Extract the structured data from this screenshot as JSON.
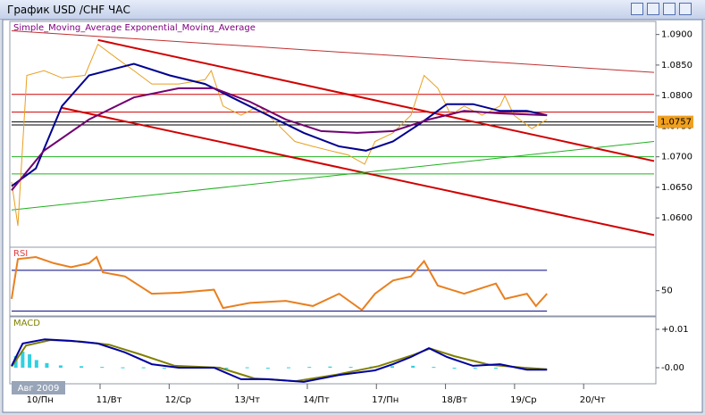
{
  "window": {
    "title": "График USD /CHF  ЧАС"
  },
  "chart_data": [
    {
      "type": "line",
      "title": "Simple_Moving_Average Exponential_Moving_Average",
      "title_color": "#800080",
      "xlim": [
        -0.41,
        8.89
      ],
      "ylim": [
        1.0555,
        1.0917
      ],
      "yticks": [
        {
          "value": 1.09,
          "label": "1.0900"
        },
        {
          "value": 1.085,
          "label": "1.0850"
        },
        {
          "value": 1.08,
          "label": "1.0800"
        },
        {
          "value": 1.075,
          "label": "1.0750"
        },
        {
          "value": 1.07,
          "label": "1.0700"
        },
        {
          "value": 1.065,
          "label": "1.0650"
        },
        {
          "value": 1.06,
          "label": "1.0600"
        }
      ],
      "last_value": 1.0757,
      "last_color": "#f0a020",
      "hlines": [
        {
          "value": 1.0802,
          "color": "#d00000"
        },
        {
          "value": 1.0773,
          "color": "#d00000"
        },
        {
          "value": 1.0757,
          "color": "#000000"
        },
        {
          "value": 1.0752,
          "color": "#000000"
        },
        {
          "value": 1.07,
          "color": "#20b020"
        },
        {
          "value": 1.0672,
          "color": "#20b020"
        }
      ],
      "trendlines": [
        {
          "x": [
            0.84,
            8.89
          ],
          "values": [
            1.0891,
            1.0693
          ],
          "color": "#d00000",
          "width": 2
        },
        {
          "x": [
            0.32,
            8.89
          ],
          "values": [
            1.078,
            1.0572
          ],
          "color": "#d00000",
          "width": 2
        },
        {
          "x": [
            -0.41,
            8.89
          ],
          "values": [
            1.0906,
            1.0838
          ],
          "color": "#c03030",
          "width": 1
        },
        {
          "x": [
            -0.41,
            8.89
          ],
          "values": [
            1.0613,
            1.0725
          ],
          "color": "#20b020",
          "width": 1
        }
      ],
      "series": [
        {
          "color": "#e8a020",
          "width": 1,
          "x": [
            -0.41,
            -0.32,
            -0.19,
            0.06,
            0.32,
            0.65,
            0.84,
            1.1,
            1.36,
            1.62,
            2.01,
            2.39,
            2.48,
            2.65,
            2.91,
            3.17,
            3.43,
            3.69,
            3.95,
            4.2,
            4.46,
            4.7,
            4.85,
            5.11,
            5.37,
            5.56,
            5.76,
            5.95,
            6.14,
            6.4,
            6.66,
            6.73,
            6.86,
            7.12,
            7.34
          ],
          "values": [
            1.0659,
            1.0587,
            1.0833,
            1.0841,
            1.0829,
            1.0833,
            1.0884,
            1.0862,
            1.0841,
            1.0819,
            1.0819,
            1.0826,
            1.0841,
            1.0783,
            1.0768,
            1.0783,
            1.0754,
            1.0725,
            1.0717,
            1.071,
            1.0703,
            1.0688,
            1.0725,
            1.0739,
            1.0768,
            1.0833,
            1.0812,
            1.0768,
            1.0783,
            1.0768,
            1.0783,
            1.08,
            1.0768,
            1.0746,
            1.0761
          ]
        },
        {
          "color": "#000090",
          "width": 2,
          "x": [
            -0.41,
            -0.06,
            0.32,
            0.71,
            1.36,
            1.88,
            2.39,
            2.78,
            3.3,
            3.82,
            4.33,
            4.72,
            5.11,
            5.5,
            5.89,
            6.27,
            6.66,
            7.05,
            7.34
          ],
          "values": [
            1.0652,
            1.0681,
            1.0783,
            1.0833,
            1.0852,
            1.0833,
            1.0819,
            1.0797,
            1.0768,
            1.0739,
            1.0717,
            1.071,
            1.0725,
            1.0754,
            1.0786,
            1.0786,
            1.0775,
            1.0775,
            1.0768
          ]
        },
        {
          "color": "#700070",
          "width": 2,
          "x": [
            -0.41,
            0.06,
            0.71,
            1.36,
            2.01,
            2.52,
            3.04,
            3.56,
            4.07,
            4.59,
            5.11,
            5.63,
            6.14,
            6.66,
            7.34
          ],
          "values": [
            1.0645,
            1.071,
            1.0761,
            1.0797,
            1.0812,
            1.0812,
            1.079,
            1.0761,
            1.0742,
            1.0739,
            1.0742,
            1.0761,
            1.0775,
            1.0771,
            1.0768
          ]
        }
      ]
    },
    {
      "type": "line",
      "title": "RSI",
      "title_color": "#e04040",
      "xlim": [
        -0.41,
        8.89
      ],
      "ylim": [
        27,
        90
      ],
      "yticks": [
        50
      ],
      "hlines": [
        {
          "value": 70,
          "color": "#000080"
        },
        {
          "value": 30,
          "color": "#000080"
        }
      ],
      "series": [
        {
          "color": "#e88020",
          "width": 2,
          "x": [
            -0.41,
            -0.32,
            -0.06,
            0.2,
            0.45,
            0.71,
            0.82,
            0.91,
            1.23,
            1.62,
            2.01,
            2.52,
            2.65,
            3.04,
            3.56,
            3.95,
            4.33,
            4.66,
            4.85,
            5.11,
            5.37,
            5.56,
            5.76,
            6.14,
            6.6,
            6.73,
            7.05,
            7.18,
            7.34
          ],
          "values": [
            42,
            81,
            83,
            77,
            73,
            77,
            83,
            68,
            64,
            47,
            48,
            51,
            33,
            38,
            40,
            35,
            47,
            31,
            47,
            60,
            64,
            79,
            55,
            47,
            57,
            42,
            47,
            35,
            47
          ]
        }
      ]
    },
    {
      "type": "line",
      "title": "MACD",
      "title_color": "#808000",
      "badge": "Авг 2009",
      "xlim": [
        -0.41,
        8.89
      ],
      "ylim": [
        -0.00372,
        0.01256
      ],
      "yticks": [
        {
          "value": 0.01,
          "label": "+0.01"
        },
        {
          "value": 0,
          "label": "-0.00"
        }
      ],
      "xticks": [
        {
          "value": 0,
          "label": "10/Пн"
        },
        {
          "value": 1,
          "label": "11/Вт"
        },
        {
          "value": 2,
          "label": "12/Ср"
        },
        {
          "value": 3,
          "label": "13/Чт"
        },
        {
          "value": 4,
          "label": "14/Пт"
        },
        {
          "value": 5,
          "label": "17/Пн"
        },
        {
          "value": 6,
          "label": "18/Вт"
        },
        {
          "value": 7,
          "label": "19/Ср"
        },
        {
          "value": 8,
          "label": "20/Чт"
        }
      ],
      "histogram": {
        "color": "#30d0e0",
        "x": [
          -0.35,
          -0.25,
          -0.15,
          -0.05,
          0.1,
          0.3,
          0.6,
          0.9,
          1.2,
          1.5,
          1.8,
          2.1,
          2.4,
          2.7,
          3.0,
          3.3,
          3.6,
          3.9,
          4.2,
          4.5,
          4.8,
          5.1,
          5.4,
          5.7,
          6.0,
          6.3,
          6.6,
          6.9,
          7.2
        ],
        "values": [
          0.003,
          0.0042,
          0.0035,
          0.002,
          0.0012,
          0.0006,
          0.0004,
          0.0002,
          0.0001,
          0.0001,
          0,
          0.0001,
          0,
          -0.0003,
          0.0001,
          0,
          0.0001,
          0.0002,
          0.0003,
          0.0002,
          0.0003,
          0.0004,
          0.0005,
          0.0002,
          0,
          -0.0002,
          -0.0001,
          0.0001,
          0
        ]
      },
      "series": [
        {
          "color": "#808000",
          "width": 2,
          "x": [
            -0.41,
            -0.2,
            0.15,
            0.6,
            1.0,
            1.45,
            1.95,
            2.6,
            3.1,
            3.7,
            4.3,
            4.9,
            5.4,
            5.65,
            6.0,
            6.5,
            7.0,
            7.34
          ],
          "values": [
            0.0003,
            0.0058,
            0.0072,
            0.0068,
            0.006,
            0.0035,
            0.0005,
            0,
            -0.0028,
            -0.0035,
            -0.0018,
            0.0004,
            0.0033,
            0.005,
            0.003,
            0.0008,
            0,
            -0.0004
          ]
        },
        {
          "color": "#0000a0",
          "width": 2,
          "x": [
            -0.41,
            -0.25,
            0.07,
            0.45,
            0.84,
            1.23,
            1.62,
            2.01,
            2.52,
            2.91,
            3.3,
            3.82,
            4.33,
            4.85,
            5.11,
            5.37,
            5.63,
            5.89,
            6.27,
            6.66,
            7.05,
            7.34
          ],
          "values": [
            0.0005,
            0.0063,
            0.0074,
            0.007,
            0.0063,
            0.004,
            0.0009,
            0,
            0,
            -0.003,
            -0.003,
            -0.0037,
            -0.0019,
            -0.0007,
            0.0009,
            0.0028,
            0.0051,
            0.0028,
            0.0005,
            0.0009,
            -0.0005,
            -0.0005
          ]
        }
      ]
    }
  ]
}
